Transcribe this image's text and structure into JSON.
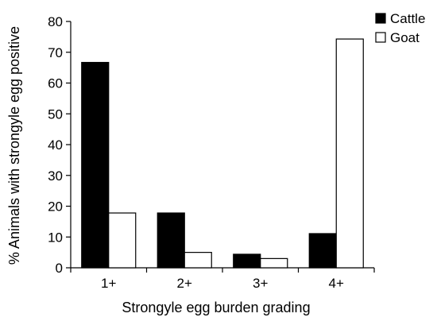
{
  "chart_data": {
    "type": "bar",
    "title": "",
    "xlabel": "Strongyle egg burden grading",
    "ylabel": "% Animals with strongyle egg positive",
    "categories": [
      "1+",
      "2+",
      "3+",
      "4+"
    ],
    "series": [
      {
        "name": "Cattle",
        "color": "#000000",
        "fill": "#000000",
        "values": [
          66.7,
          17.8,
          4.4,
          11.1
        ]
      },
      {
        "name": "Goat",
        "color": "#000000",
        "fill": "#ffffff",
        "values": [
          17.8,
          5.0,
          3.0,
          74.3
        ]
      }
    ],
    "ylim": [
      0,
      80
    ],
    "yticks": [
      0,
      10,
      20,
      30,
      40,
      50,
      60,
      70,
      80
    ],
    "grid": false,
    "legend_position": "top-right"
  }
}
